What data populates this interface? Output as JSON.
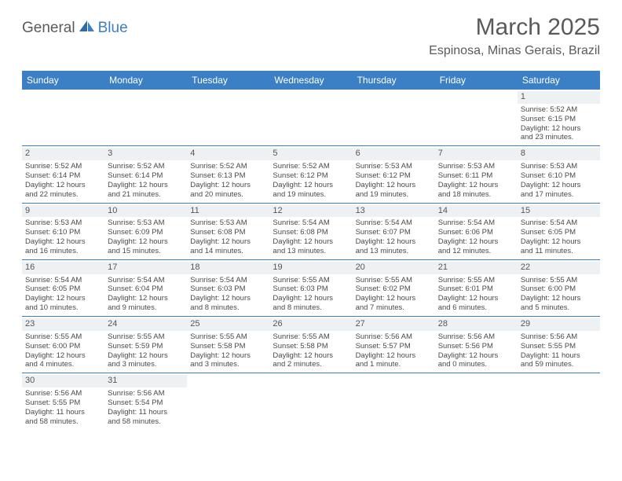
{
  "brand": {
    "part1": "General",
    "part2": "Blue"
  },
  "title": "March 2025",
  "location": "Espinosa, Minas Gerais, Brazil",
  "colors": {
    "header_bg": "#3b7fc4",
    "header_fg": "#ffffff",
    "text": "#4a4a4a",
    "title": "#5a5a5a",
    "daynum_bg": "#eef1f4",
    "rule": "#3b7fc4"
  },
  "dayNames": [
    "Sunday",
    "Monday",
    "Tuesday",
    "Wednesday",
    "Thursday",
    "Friday",
    "Saturday"
  ],
  "weeks": [
    [
      null,
      null,
      null,
      null,
      null,
      null,
      {
        "n": "1",
        "sr": "Sunrise: 5:52 AM",
        "ss": "Sunset: 6:15 PM",
        "dl1": "Daylight: 12 hours",
        "dl2": "and 23 minutes."
      }
    ],
    [
      {
        "n": "2",
        "sr": "Sunrise: 5:52 AM",
        "ss": "Sunset: 6:14 PM",
        "dl1": "Daylight: 12 hours",
        "dl2": "and 22 minutes."
      },
      {
        "n": "3",
        "sr": "Sunrise: 5:52 AM",
        "ss": "Sunset: 6:14 PM",
        "dl1": "Daylight: 12 hours",
        "dl2": "and 21 minutes."
      },
      {
        "n": "4",
        "sr": "Sunrise: 5:52 AM",
        "ss": "Sunset: 6:13 PM",
        "dl1": "Daylight: 12 hours",
        "dl2": "and 20 minutes."
      },
      {
        "n": "5",
        "sr": "Sunrise: 5:52 AM",
        "ss": "Sunset: 6:12 PM",
        "dl1": "Daylight: 12 hours",
        "dl2": "and 19 minutes."
      },
      {
        "n": "6",
        "sr": "Sunrise: 5:53 AM",
        "ss": "Sunset: 6:12 PM",
        "dl1": "Daylight: 12 hours",
        "dl2": "and 19 minutes."
      },
      {
        "n": "7",
        "sr": "Sunrise: 5:53 AM",
        "ss": "Sunset: 6:11 PM",
        "dl1": "Daylight: 12 hours",
        "dl2": "and 18 minutes."
      },
      {
        "n": "8",
        "sr": "Sunrise: 5:53 AM",
        "ss": "Sunset: 6:10 PM",
        "dl1": "Daylight: 12 hours",
        "dl2": "and 17 minutes."
      }
    ],
    [
      {
        "n": "9",
        "sr": "Sunrise: 5:53 AM",
        "ss": "Sunset: 6:10 PM",
        "dl1": "Daylight: 12 hours",
        "dl2": "and 16 minutes."
      },
      {
        "n": "10",
        "sr": "Sunrise: 5:53 AM",
        "ss": "Sunset: 6:09 PM",
        "dl1": "Daylight: 12 hours",
        "dl2": "and 15 minutes."
      },
      {
        "n": "11",
        "sr": "Sunrise: 5:53 AM",
        "ss": "Sunset: 6:08 PM",
        "dl1": "Daylight: 12 hours",
        "dl2": "and 14 minutes."
      },
      {
        "n": "12",
        "sr": "Sunrise: 5:54 AM",
        "ss": "Sunset: 6:08 PM",
        "dl1": "Daylight: 12 hours",
        "dl2": "and 13 minutes."
      },
      {
        "n": "13",
        "sr": "Sunrise: 5:54 AM",
        "ss": "Sunset: 6:07 PM",
        "dl1": "Daylight: 12 hours",
        "dl2": "and 13 minutes."
      },
      {
        "n": "14",
        "sr": "Sunrise: 5:54 AM",
        "ss": "Sunset: 6:06 PM",
        "dl1": "Daylight: 12 hours",
        "dl2": "and 12 minutes."
      },
      {
        "n": "15",
        "sr": "Sunrise: 5:54 AM",
        "ss": "Sunset: 6:05 PM",
        "dl1": "Daylight: 12 hours",
        "dl2": "and 11 minutes."
      }
    ],
    [
      {
        "n": "16",
        "sr": "Sunrise: 5:54 AM",
        "ss": "Sunset: 6:05 PM",
        "dl1": "Daylight: 12 hours",
        "dl2": "and 10 minutes."
      },
      {
        "n": "17",
        "sr": "Sunrise: 5:54 AM",
        "ss": "Sunset: 6:04 PM",
        "dl1": "Daylight: 12 hours",
        "dl2": "and 9 minutes."
      },
      {
        "n": "18",
        "sr": "Sunrise: 5:54 AM",
        "ss": "Sunset: 6:03 PM",
        "dl1": "Daylight: 12 hours",
        "dl2": "and 8 minutes."
      },
      {
        "n": "19",
        "sr": "Sunrise: 5:55 AM",
        "ss": "Sunset: 6:03 PM",
        "dl1": "Daylight: 12 hours",
        "dl2": "and 8 minutes."
      },
      {
        "n": "20",
        "sr": "Sunrise: 5:55 AM",
        "ss": "Sunset: 6:02 PM",
        "dl1": "Daylight: 12 hours",
        "dl2": "and 7 minutes."
      },
      {
        "n": "21",
        "sr": "Sunrise: 5:55 AM",
        "ss": "Sunset: 6:01 PM",
        "dl1": "Daylight: 12 hours",
        "dl2": "and 6 minutes."
      },
      {
        "n": "22",
        "sr": "Sunrise: 5:55 AM",
        "ss": "Sunset: 6:00 PM",
        "dl1": "Daylight: 12 hours",
        "dl2": "and 5 minutes."
      }
    ],
    [
      {
        "n": "23",
        "sr": "Sunrise: 5:55 AM",
        "ss": "Sunset: 6:00 PM",
        "dl1": "Daylight: 12 hours",
        "dl2": "and 4 minutes."
      },
      {
        "n": "24",
        "sr": "Sunrise: 5:55 AM",
        "ss": "Sunset: 5:59 PM",
        "dl1": "Daylight: 12 hours",
        "dl2": "and 3 minutes."
      },
      {
        "n": "25",
        "sr": "Sunrise: 5:55 AM",
        "ss": "Sunset: 5:58 PM",
        "dl1": "Daylight: 12 hours",
        "dl2": "and 3 minutes."
      },
      {
        "n": "26",
        "sr": "Sunrise: 5:55 AM",
        "ss": "Sunset: 5:58 PM",
        "dl1": "Daylight: 12 hours",
        "dl2": "and 2 minutes."
      },
      {
        "n": "27",
        "sr": "Sunrise: 5:56 AM",
        "ss": "Sunset: 5:57 PM",
        "dl1": "Daylight: 12 hours",
        "dl2": "and 1 minute."
      },
      {
        "n": "28",
        "sr": "Sunrise: 5:56 AM",
        "ss": "Sunset: 5:56 PM",
        "dl1": "Daylight: 12 hours",
        "dl2": "and 0 minutes."
      },
      {
        "n": "29",
        "sr": "Sunrise: 5:56 AM",
        "ss": "Sunset: 5:55 PM",
        "dl1": "Daylight: 11 hours",
        "dl2": "and 59 minutes."
      }
    ],
    [
      {
        "n": "30",
        "sr": "Sunrise: 5:56 AM",
        "ss": "Sunset: 5:55 PM",
        "dl1": "Daylight: 11 hours",
        "dl2": "and 58 minutes."
      },
      {
        "n": "31",
        "sr": "Sunrise: 5:56 AM",
        "ss": "Sunset: 5:54 PM",
        "dl1": "Daylight: 11 hours",
        "dl2": "and 58 minutes."
      },
      null,
      null,
      null,
      null,
      null
    ]
  ]
}
